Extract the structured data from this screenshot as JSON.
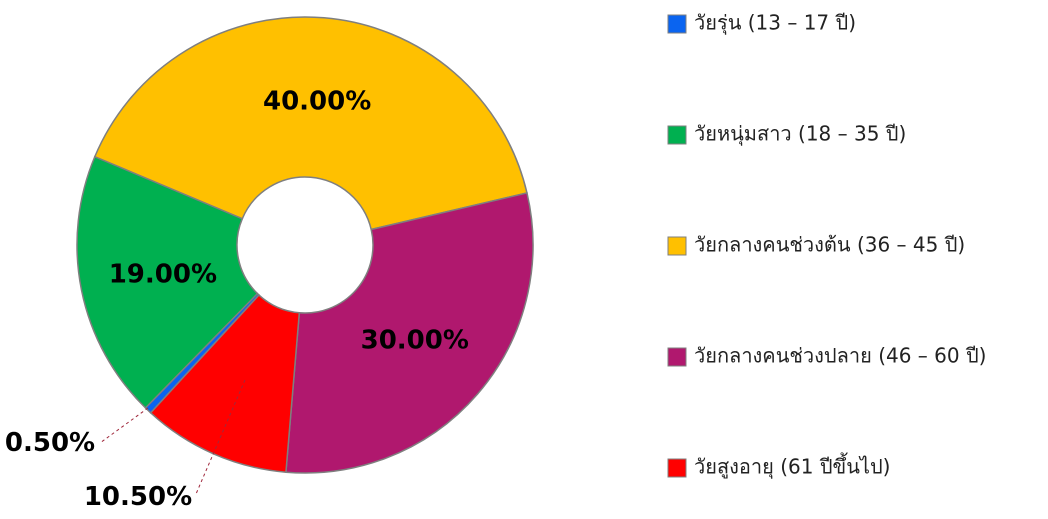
{
  "chart_data": {
    "type": "donut",
    "categories": [
      "วัยรุ่น (13 – 17 ปี)",
      "วัยหนุ่มสาว (18 – 35 ปี)",
      "วัยกลางคนช่วงต้น (36 – 45 ปี)",
      "วัยกลางคนช่วงปลาย (46 – 60 ปี)",
      "วัยสูงอายุ (61 ปีขึ้นไป)"
    ],
    "values": [
      0.5,
      19,
      40,
      30,
      10.5
    ],
    "value_labels": [
      "0.50%",
      "19.00%",
      "40.00%",
      "30.00%",
      "10.50%"
    ],
    "colors": [
      "#0a64f0",
      "#00b050",
      "#ffc000",
      "#b0186e",
      "#ff0000"
    ],
    "legend": "right"
  }
}
